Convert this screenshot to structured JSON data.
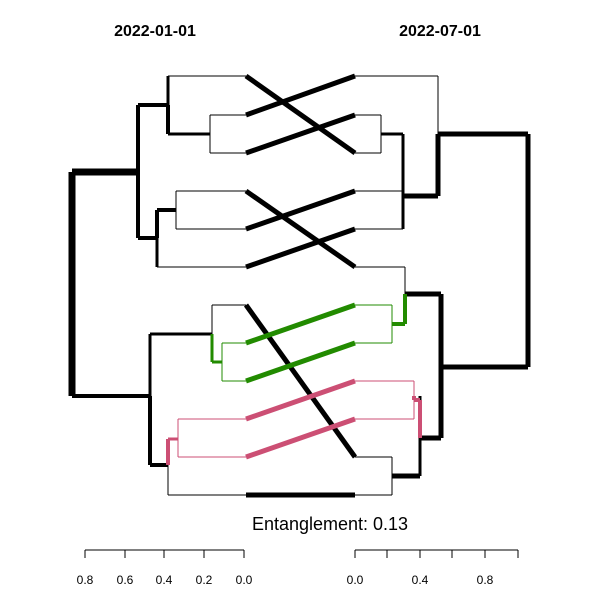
{
  "left_title": "2022-01-01",
  "right_title": "2022-07-01",
  "caption": "Entanglement: 0.13",
  "left_axis_ticks": [
    "0.8",
    "0.6",
    "0.4",
    "0.2",
    "0.0"
  ],
  "right_axis_ticks": [
    "0.0",
    "0.4",
    "0.8"
  ],
  "colors": {
    "default": "#000000",
    "green": "#228b00",
    "pink": "#cc4f74"
  }
}
